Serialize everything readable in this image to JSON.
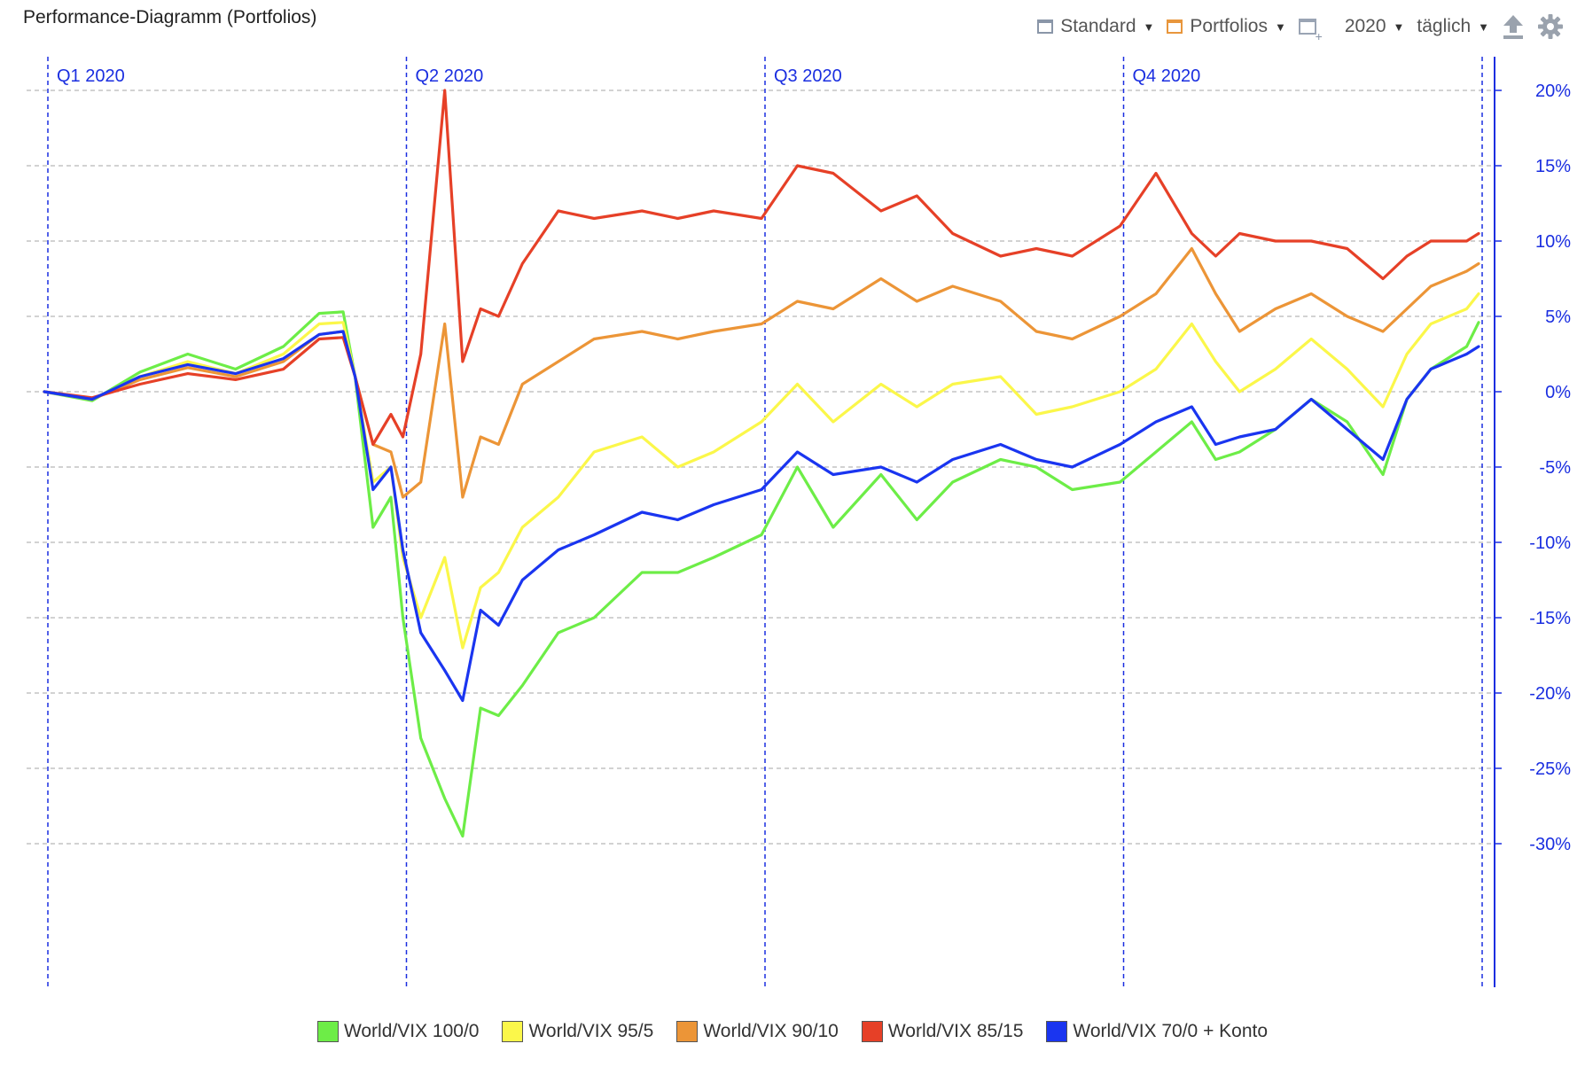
{
  "window": {
    "title": "Performance-Diagramm (Portfolios)"
  },
  "toolbar": {
    "view_label": "Standard",
    "group_label": "Portfolios",
    "year_label": "2020",
    "interval_label": "täglich",
    "icons": [
      "window-icon",
      "portfolio-window-icon",
      "add-window-icon",
      "upload-icon",
      "gear-icon"
    ]
  },
  "chart_data": {
    "type": "line",
    "title": "Performance-Diagramm (Portfolios)",
    "xlabel": "",
    "ylabel": "",
    "quarters": [
      "Q1 2020",
      "Q2 2020",
      "Q3 2020",
      "Q4 2020"
    ],
    "ylim": [
      -30,
      20
    ],
    "yticks": [
      20,
      15,
      10,
      5,
      0,
      -5,
      -10,
      -15,
      -20,
      -25,
      -30
    ],
    "ytick_labels": [
      "20%",
      "15%",
      "10%",
      "5%",
      "0%",
      "-5%",
      "-10%",
      "-15%",
      "-20%",
      "-25%",
      "-30%"
    ],
    "grid": true,
    "legend_position": "bottom",
    "x_unit": "month of 2020 (0 = Jan 1, 12 = Dec 31)",
    "series": [
      {
        "name": "World/VIX 100/0",
        "color": "#6ded47",
        "points": [
          [
            0.0,
            0.0
          ],
          [
            0.4,
            -0.6
          ],
          [
            0.8,
            1.3
          ],
          [
            1.2,
            2.5
          ],
          [
            1.6,
            1.5
          ],
          [
            2.0,
            3.0
          ],
          [
            2.3,
            5.2
          ],
          [
            2.5,
            5.3
          ],
          [
            2.6,
            1.0
          ],
          [
            2.75,
            -9.0
          ],
          [
            2.9,
            -7.0
          ],
          [
            3.0,
            -15.0
          ],
          [
            3.15,
            -23.0
          ],
          [
            3.35,
            -27.0
          ],
          [
            3.5,
            -29.5
          ],
          [
            3.65,
            -21.0
          ],
          [
            3.8,
            -21.5
          ],
          [
            4.0,
            -19.5
          ],
          [
            4.3,
            -16.0
          ],
          [
            4.6,
            -15.0
          ],
          [
            5.0,
            -12.0
          ],
          [
            5.3,
            -12.0
          ],
          [
            5.6,
            -11.0
          ],
          [
            6.0,
            -9.5
          ],
          [
            6.3,
            -5.0
          ],
          [
            6.6,
            -9.0
          ],
          [
            7.0,
            -5.5
          ],
          [
            7.3,
            -8.5
          ],
          [
            7.6,
            -6.0
          ],
          [
            8.0,
            -4.5
          ],
          [
            8.3,
            -5.0
          ],
          [
            8.6,
            -6.5
          ],
          [
            9.0,
            -6.0
          ],
          [
            9.3,
            -4.0
          ],
          [
            9.6,
            -2.0
          ],
          [
            9.8,
            -4.5
          ],
          [
            10.0,
            -4.0
          ],
          [
            10.3,
            -2.5
          ],
          [
            10.6,
            -0.5
          ],
          [
            10.9,
            -2.0
          ],
          [
            11.2,
            -5.5
          ],
          [
            11.4,
            -0.5
          ],
          [
            11.6,
            1.5
          ],
          [
            11.9,
            3.0
          ],
          [
            12.0,
            4.6
          ]
        ]
      },
      {
        "name": "World/VIX 95/5",
        "color": "#fbf74a",
        "points": [
          [
            0.0,
            0.0
          ],
          [
            0.4,
            -0.5
          ],
          [
            0.8,
            1.0
          ],
          [
            1.2,
            2.0
          ],
          [
            1.6,
            1.2
          ],
          [
            2.0,
            2.5
          ],
          [
            2.3,
            4.5
          ],
          [
            2.5,
            4.6
          ],
          [
            2.6,
            1.0
          ],
          [
            2.75,
            -6.0
          ],
          [
            2.9,
            -5.0
          ],
          [
            3.0,
            -11.0
          ],
          [
            3.15,
            -15.0
          ],
          [
            3.35,
            -11.0
          ],
          [
            3.5,
            -17.0
          ],
          [
            3.65,
            -13.0
          ],
          [
            3.8,
            -12.0
          ],
          [
            4.0,
            -9.0
          ],
          [
            4.3,
            -7.0
          ],
          [
            4.6,
            -4.0
          ],
          [
            5.0,
            -3.0
          ],
          [
            5.3,
            -5.0
          ],
          [
            5.6,
            -4.0
          ],
          [
            6.0,
            -2.0
          ],
          [
            6.3,
            0.5
          ],
          [
            6.6,
            -2.0
          ],
          [
            7.0,
            0.5
          ],
          [
            7.3,
            -1.0
          ],
          [
            7.6,
            0.5
          ],
          [
            8.0,
            1.0
          ],
          [
            8.3,
            -1.5
          ],
          [
            8.6,
            -1.0
          ],
          [
            9.0,
            0.0
          ],
          [
            9.3,
            1.5
          ],
          [
            9.6,
            4.5
          ],
          [
            9.8,
            2.0
          ],
          [
            10.0,
            0.0
          ],
          [
            10.3,
            1.5
          ],
          [
            10.6,
            3.5
          ],
          [
            10.9,
            1.5
          ],
          [
            11.2,
            -1.0
          ],
          [
            11.4,
            2.5
          ],
          [
            11.6,
            4.5
          ],
          [
            11.9,
            5.5
          ],
          [
            12.0,
            6.5
          ]
        ]
      },
      {
        "name": "World/VIX 90/10",
        "color": "#ec9537",
        "points": [
          [
            0.0,
            0.0
          ],
          [
            0.4,
            -0.5
          ],
          [
            0.8,
            0.8
          ],
          [
            1.2,
            1.6
          ],
          [
            1.6,
            1.0
          ],
          [
            2.0,
            2.0
          ],
          [
            2.3,
            3.8
          ],
          [
            2.5,
            4.0
          ],
          [
            2.6,
            1.0
          ],
          [
            2.75,
            -3.5
          ],
          [
            2.9,
            -4.0
          ],
          [
            3.0,
            -7.0
          ],
          [
            3.15,
            -6.0
          ],
          [
            3.35,
            4.5
          ],
          [
            3.5,
            -7.0
          ],
          [
            3.65,
            -3.0
          ],
          [
            3.8,
            -3.5
          ],
          [
            4.0,
            0.5
          ],
          [
            4.3,
            2.0
          ],
          [
            4.6,
            3.5
          ],
          [
            5.0,
            4.0
          ],
          [
            5.3,
            3.5
          ],
          [
            5.6,
            4.0
          ],
          [
            6.0,
            4.5
          ],
          [
            6.3,
            6.0
          ],
          [
            6.6,
            5.5
          ],
          [
            7.0,
            7.5
          ],
          [
            7.3,
            6.0
          ],
          [
            7.6,
            7.0
          ],
          [
            8.0,
            6.0
          ],
          [
            8.3,
            4.0
          ],
          [
            8.6,
            3.5
          ],
          [
            9.0,
            5.0
          ],
          [
            9.3,
            6.5
          ],
          [
            9.6,
            9.5
          ],
          [
            9.8,
            6.5
          ],
          [
            10.0,
            4.0
          ],
          [
            10.3,
            5.5
          ],
          [
            10.6,
            6.5
          ],
          [
            10.9,
            5.0
          ],
          [
            11.2,
            4.0
          ],
          [
            11.4,
            5.5
          ],
          [
            11.6,
            7.0
          ],
          [
            11.9,
            8.0
          ],
          [
            12.0,
            8.5
          ]
        ]
      },
      {
        "name": "World/VIX 85/15",
        "color": "#e64027",
        "points": [
          [
            0.0,
            0.0
          ],
          [
            0.4,
            -0.4
          ],
          [
            0.8,
            0.5
          ],
          [
            1.2,
            1.2
          ],
          [
            1.6,
            0.8
          ],
          [
            2.0,
            1.5
          ],
          [
            2.3,
            3.5
          ],
          [
            2.5,
            3.6
          ],
          [
            2.6,
            1.0
          ],
          [
            2.75,
            -3.5
          ],
          [
            2.9,
            -1.5
          ],
          [
            3.0,
            -3.0
          ],
          [
            3.15,
            2.5
          ],
          [
            3.35,
            20.0
          ],
          [
            3.5,
            2.0
          ],
          [
            3.65,
            5.5
          ],
          [
            3.8,
            5.0
          ],
          [
            4.0,
            8.5
          ],
          [
            4.3,
            12.0
          ],
          [
            4.6,
            11.5
          ],
          [
            5.0,
            12.0
          ],
          [
            5.3,
            11.5
          ],
          [
            5.6,
            12.0
          ],
          [
            6.0,
            11.5
          ],
          [
            6.3,
            15.0
          ],
          [
            6.6,
            14.5
          ],
          [
            7.0,
            12.0
          ],
          [
            7.3,
            13.0
          ],
          [
            7.6,
            10.5
          ],
          [
            8.0,
            9.0
          ],
          [
            8.3,
            9.5
          ],
          [
            8.6,
            9.0
          ],
          [
            9.0,
            11.0
          ],
          [
            9.3,
            14.5
          ],
          [
            9.6,
            10.5
          ],
          [
            9.8,
            9.0
          ],
          [
            10.0,
            10.5
          ],
          [
            10.3,
            10.0
          ],
          [
            10.6,
            10.0
          ],
          [
            10.9,
            9.5
          ],
          [
            11.2,
            7.5
          ],
          [
            11.4,
            9.0
          ],
          [
            11.6,
            10.0
          ],
          [
            11.9,
            10.0
          ],
          [
            12.0,
            10.5
          ]
        ]
      },
      {
        "name": "World/VIX 70/0 + Konto",
        "color": "#1a35f0",
        "points": [
          [
            0.0,
            0.0
          ],
          [
            0.4,
            -0.5
          ],
          [
            0.8,
            1.0
          ],
          [
            1.2,
            1.8
          ],
          [
            1.6,
            1.2
          ],
          [
            2.0,
            2.2
          ],
          [
            2.3,
            3.8
          ],
          [
            2.5,
            4.0
          ],
          [
            2.6,
            1.0
          ],
          [
            2.75,
            -6.5
          ],
          [
            2.9,
            -5.0
          ],
          [
            3.0,
            -10.5
          ],
          [
            3.15,
            -16.0
          ],
          [
            3.35,
            -18.5
          ],
          [
            3.5,
            -20.5
          ],
          [
            3.65,
            -14.5
          ],
          [
            3.8,
            -15.5
          ],
          [
            4.0,
            -12.5
          ],
          [
            4.3,
            -10.5
          ],
          [
            4.6,
            -9.5
          ],
          [
            5.0,
            -8.0
          ],
          [
            5.3,
            -8.5
          ],
          [
            5.6,
            -7.5
          ],
          [
            6.0,
            -6.5
          ],
          [
            6.3,
            -4.0
          ],
          [
            6.6,
            -5.5
          ],
          [
            7.0,
            -5.0
          ],
          [
            7.3,
            -6.0
          ],
          [
            7.6,
            -4.5
          ],
          [
            8.0,
            -3.5
          ],
          [
            8.3,
            -4.5
          ],
          [
            8.6,
            -5.0
          ],
          [
            9.0,
            -3.5
          ],
          [
            9.3,
            -2.0
          ],
          [
            9.6,
            -1.0
          ],
          [
            9.8,
            -3.5
          ],
          [
            10.0,
            -3.0
          ],
          [
            10.3,
            -2.5
          ],
          [
            10.6,
            -0.5
          ],
          [
            10.9,
            -2.5
          ],
          [
            11.2,
            -4.5
          ],
          [
            11.4,
            -0.5
          ],
          [
            11.6,
            1.5
          ],
          [
            11.9,
            2.5
          ],
          [
            12.0,
            3.0
          ]
        ]
      }
    ]
  }
}
